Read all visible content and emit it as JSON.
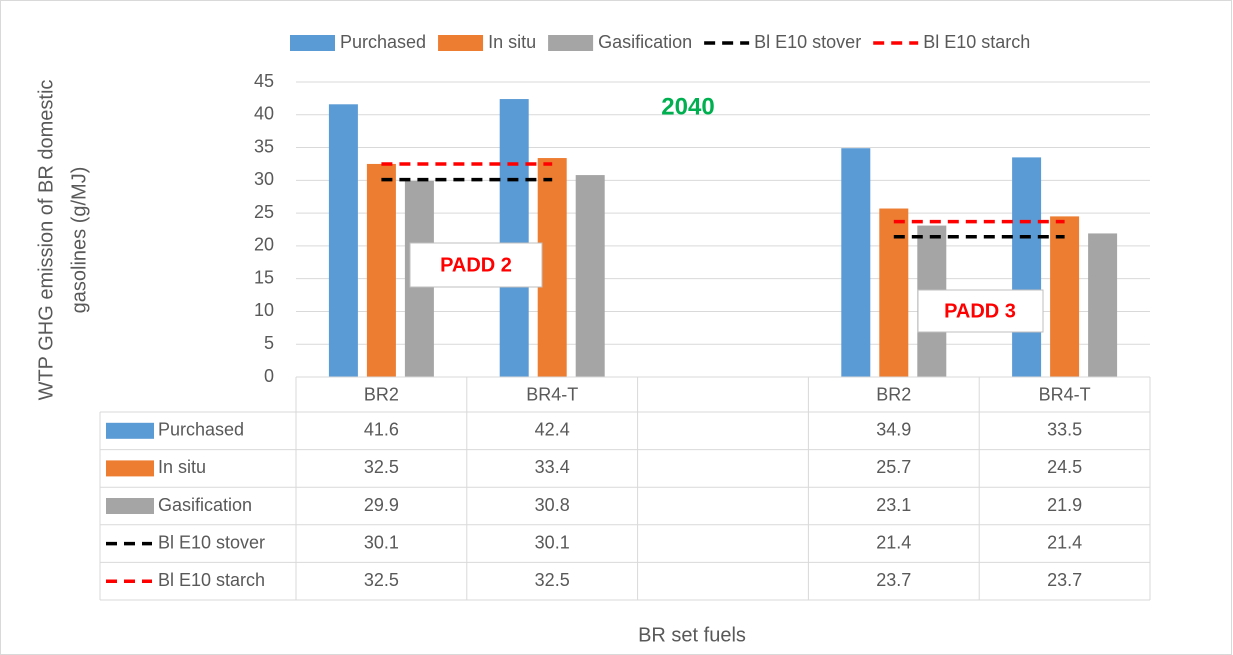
{
  "chart_data": {
    "type": "bar",
    "ylabel": [
      "WTP GHG emission of BR  domestic",
      "gasolines (g/MJ)"
    ],
    "xlabel": "BR set fuels",
    "categories": [
      "BR2",
      "BR4-T",
      null,
      "BR2",
      "BR4-T"
    ],
    "series": [
      {
        "name": "Purchased",
        "type": "bar",
        "color": "#5b9bd5",
        "values": [
          41.6,
          42.4,
          null,
          34.9,
          33.5
        ]
      },
      {
        "name": "In situ",
        "type": "bar",
        "color": "#ed7d31",
        "values": [
          32.5,
          33.4,
          null,
          25.7,
          24.5
        ]
      },
      {
        "name": "Gasification",
        "type": "bar",
        "color": "#a5a5a5",
        "values": [
          29.9,
          30.8,
          null,
          23.1,
          21.9
        ]
      },
      {
        "name": "Bl E10 stover",
        "type": "line",
        "color": "#000000",
        "values": [
          30.1,
          30.1,
          null,
          21.4,
          21.4
        ]
      },
      {
        "name": "Bl E10 starch",
        "type": "line",
        "color": "#ff0000",
        "values": [
          32.5,
          32.5,
          null,
          23.7,
          23.7
        ]
      }
    ],
    "ylim": [
      0,
      45
    ],
    "yticks": [
      0,
      5,
      10,
      15,
      20,
      25,
      30,
      35,
      40,
      45
    ],
    "grid": true,
    "legend": "top",
    "data_table": true,
    "annotations": [
      {
        "text": "2040",
        "color": "#00b050"
      },
      {
        "text": "PADD 2",
        "color": "#ff0000"
      },
      {
        "text": "PADD 3",
        "color": "#ff0000"
      }
    ]
  }
}
